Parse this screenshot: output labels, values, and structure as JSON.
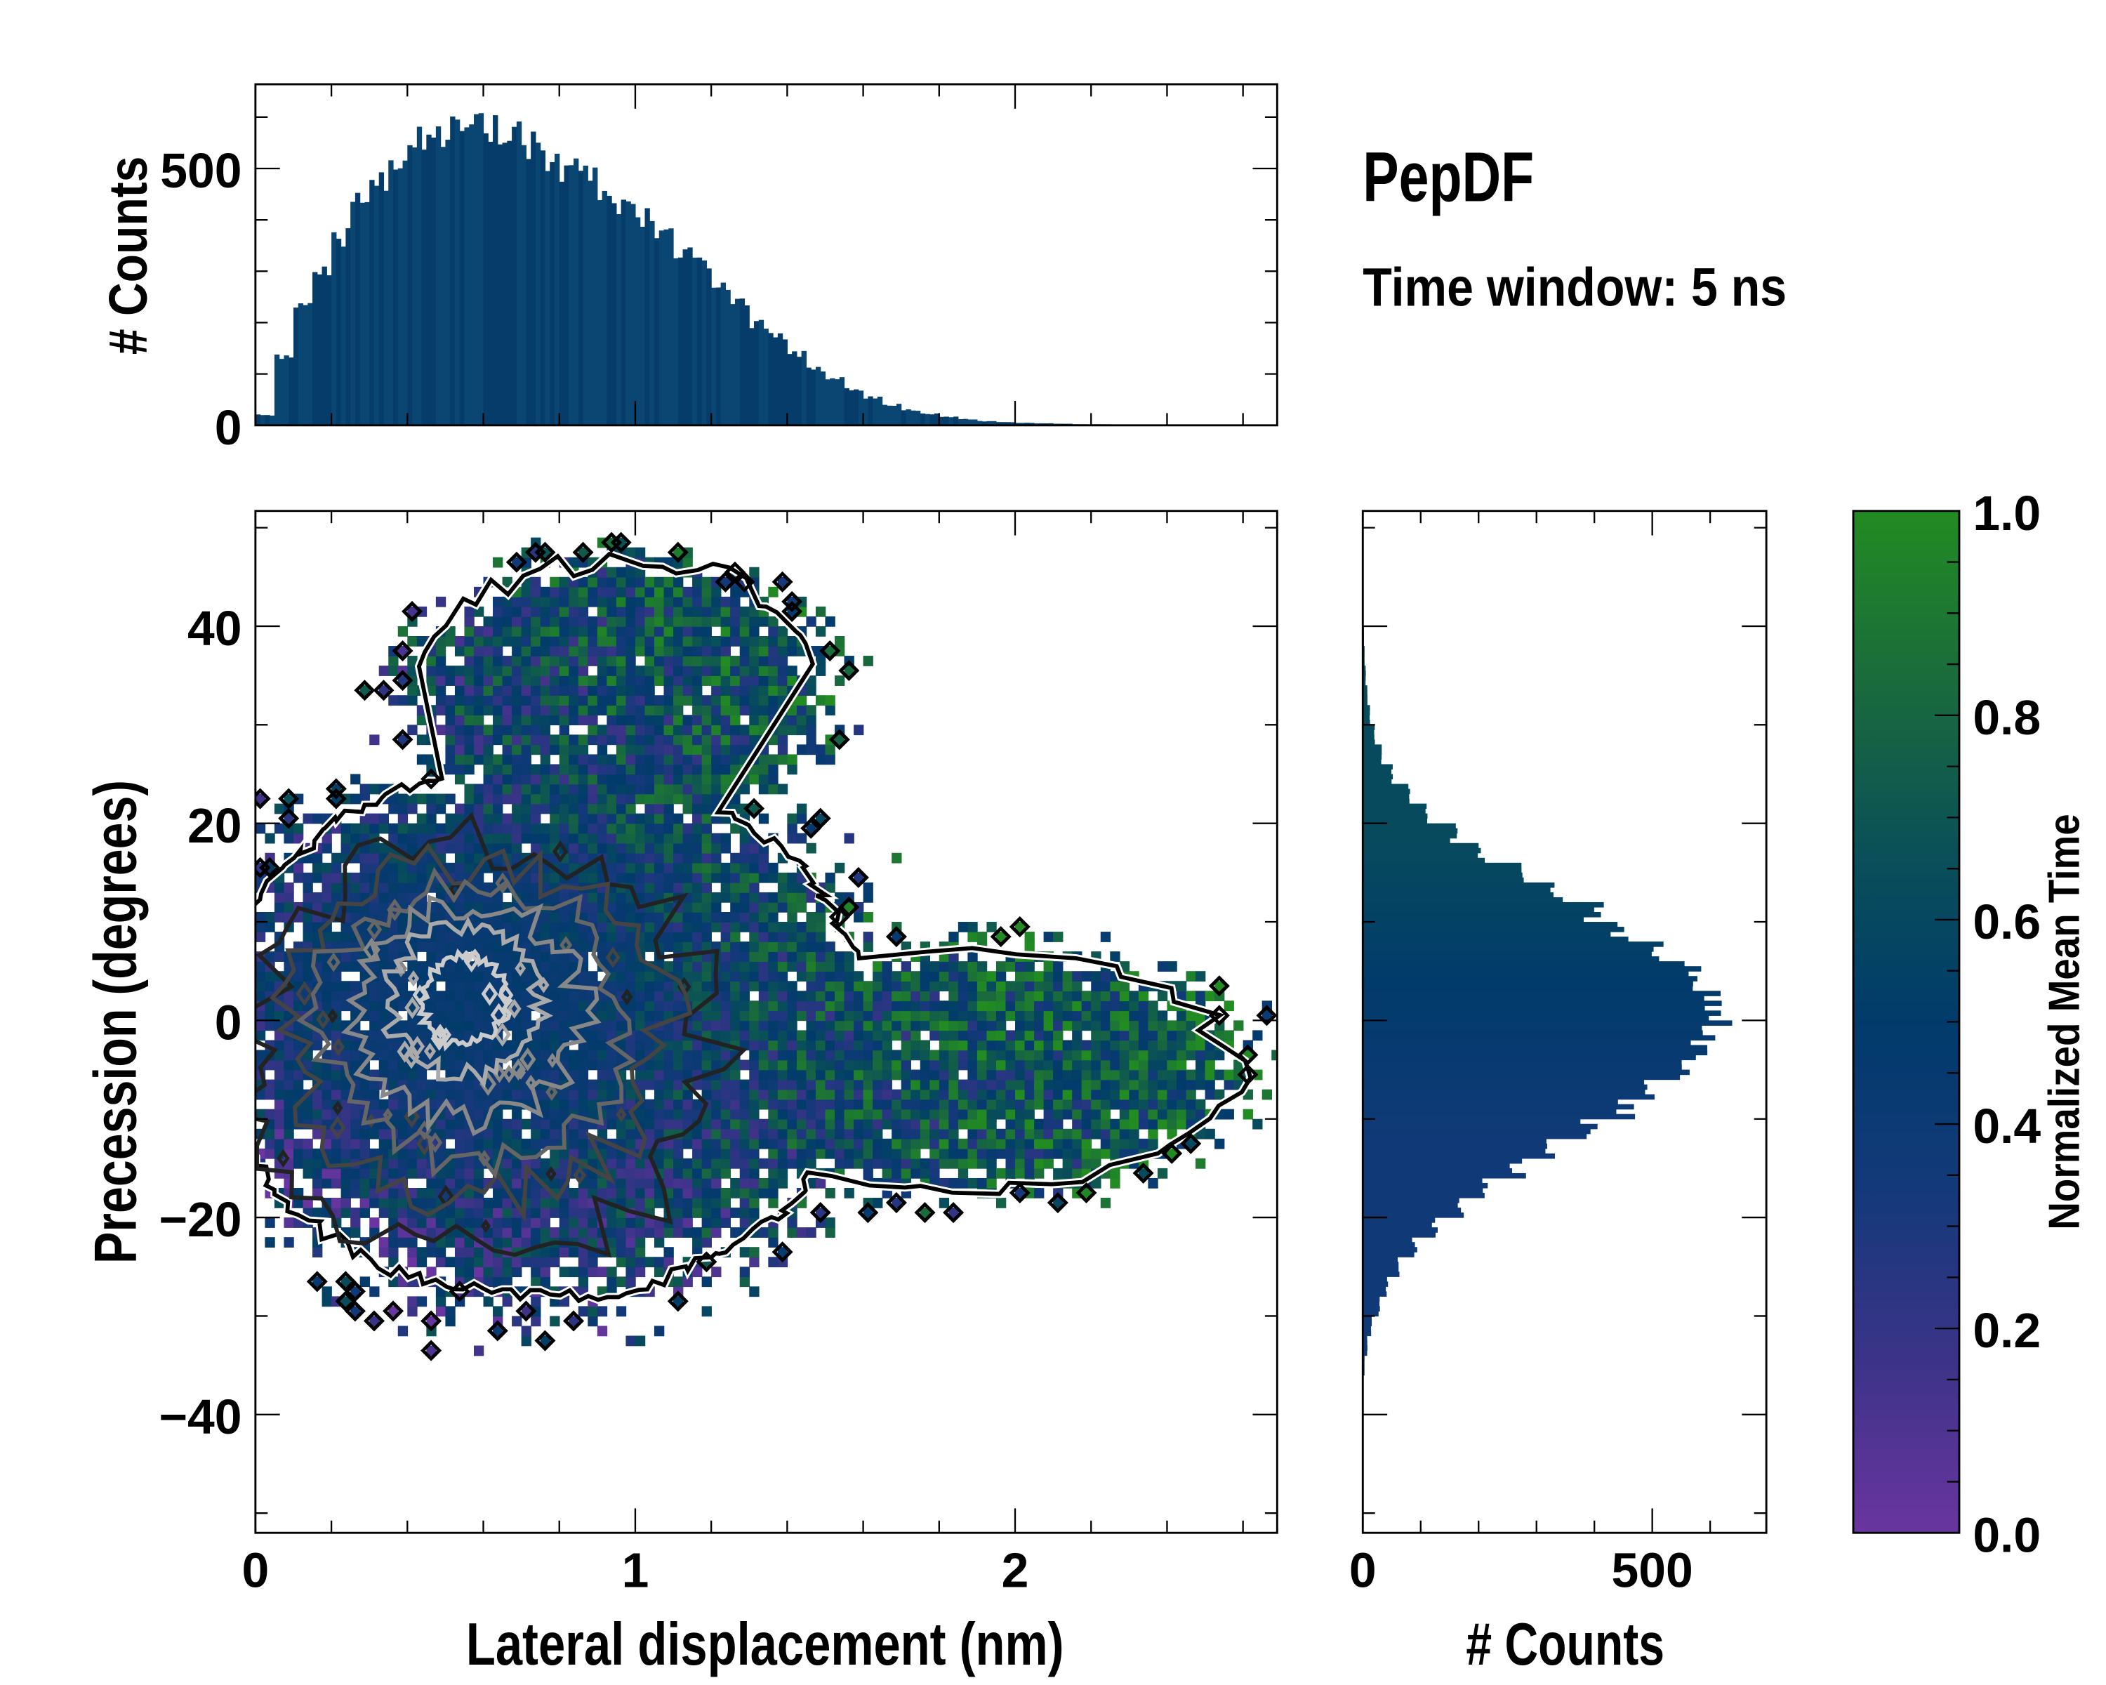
{
  "title": "PepDF",
  "subtitle": "Time window: 5 ns",
  "chart_data": [
    {
      "name": "top-marginal",
      "type": "bar",
      "ylabel": "# Counts",
      "xlim": [
        0,
        2.69
      ],
      "ylim": [
        0,
        664
      ],
      "yticks": [
        "0",
        "500"
      ],
      "ytick_values": [
        0,
        500
      ],
      "bin_width": 0.05,
      "bin_start": 0,
      "values": [
        20,
        130,
        230,
        300,
        370,
        430,
        480,
        520,
        550,
        560,
        570,
        575,
        570,
        560,
        540,
        520,
        500,
        480,
        460,
        430,
        400,
        370,
        340,
        310,
        280,
        240,
        200,
        170,
        140,
        110,
        90,
        70,
        55,
        40,
        30,
        22,
        16,
        12,
        8,
        6,
        5,
        4,
        3,
        2,
        2,
        1,
        1,
        1,
        1,
        0,
        1,
        0,
        0,
        0
      ],
      "color": "#063c6a"
    },
    {
      "name": "joint-heatmap",
      "type": "heatmap",
      "xlabel": "Lateral displacement (nm)",
      "ylabel": "Precession (degrees)",
      "xlim": [
        0,
        2.69
      ],
      "ylim": [
        -52,
        51.7
      ],
      "xticks": [
        "0",
        "1",
        "2"
      ],
      "xtick_values": [
        0,
        1,
        2
      ],
      "yticks": [
        "40",
        "20",
        "0",
        "−20",
        "−40"
      ],
      "ytick_values": [
        40,
        20,
        0,
        -20,
        -40
      ],
      "cell_size": {
        "x": 0.025,
        "y": 1
      },
      "density_center": {
        "x": 0.55,
        "y": 2
      },
      "contour_colors": [
        "#222222",
        "#444444",
        "#666666",
        "#888888",
        "#aaaaaa",
        "#cccccc"
      ]
    },
    {
      "name": "right-marginal",
      "type": "bar",
      "orientation": "horizontal",
      "xlabel": "# Counts",
      "xlim": [
        0,
        697
      ],
      "xticks": [
        "0",
        "500"
      ],
      "xtick_values": [
        0,
        500
      ],
      "bin_width": 2,
      "bin_start": -36,
      "values": [
        3,
        8,
        15,
        28,
        42,
        62,
        90,
        125,
        165,
        215,
        270,
        330,
        390,
        450,
        510,
        560,
        590,
        610,
        610,
        590,
        560,
        510,
        455,
        395,
        330,
        270,
        210,
        160,
        115,
        80,
        52,
        32,
        20,
        12,
        8,
        5,
        3,
        2,
        1,
        1
      ],
      "color": "#063c6a"
    },
    {
      "name": "colorbar",
      "type": "colorbar",
      "label": "Normalized Mean Time",
      "range": [
        0,
        1
      ],
      "ticks": [
        "0.0",
        "0.2",
        "0.4",
        "0.6",
        "0.8",
        "1.0"
      ],
      "tick_values": [
        0,
        0.2,
        0.4,
        0.6,
        0.8,
        1.0
      ],
      "colormap": [
        "#6a35a0",
        "#3c3388",
        "#14397a",
        "#013b6b",
        "#0a5058",
        "#1a6b3c",
        "#228b22"
      ]
    }
  ]
}
